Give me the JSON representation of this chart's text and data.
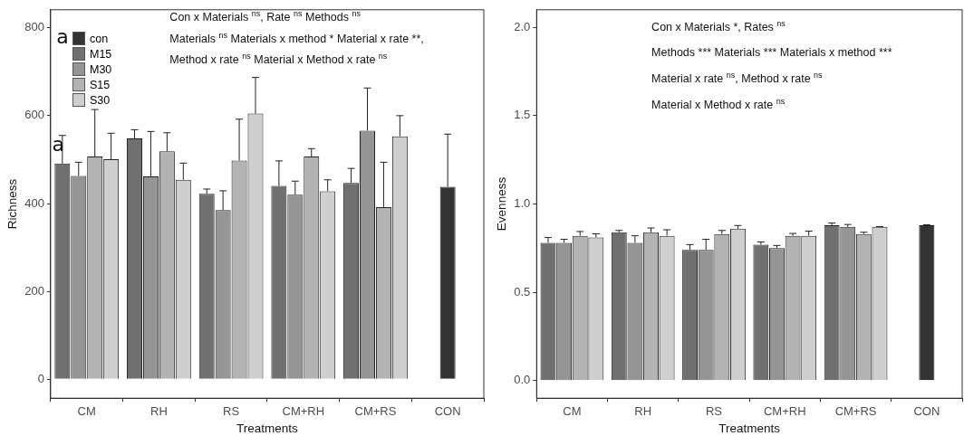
{
  "chart_data": [
    {
      "type": "bar",
      "xlabel": "Treatments",
      "ylabel": "Richness",
      "categories": [
        "CM",
        "RH",
        "RS",
        "CM+RH",
        "CM+RS",
        "CON"
      ],
      "ylim": [
        -43,
        841
      ],
      "yticks": [
        0,
        200,
        400,
        600,
        800
      ],
      "grid": false,
      "legend": "top left",
      "series": [
        {
          "name": "con",
          "color": "#333333",
          "values": [
            null,
            null,
            null,
            null,
            null,
            438
          ],
          "errors": [
            null,
            null,
            null,
            null,
            null,
            120
          ]
        },
        {
          "name": "M15",
          "color": "#707070",
          "values": [
            491,
            548,
            422,
            440,
            447,
            null
          ],
          "errors": [
            64,
            20,
            11,
            57,
            33,
            null
          ]
        },
        {
          "name": "M30",
          "color": "#959595",
          "values": [
            463,
            462,
            385,
            420,
            566,
            null
          ],
          "errors": [
            31,
            102,
            44,
            31,
            97,
            null
          ]
        },
        {
          "name": "S15",
          "color": "#b3b3b3",
          "values": [
            507,
            519,
            498,
            507,
            392,
            null
          ],
          "errors": [
            107,
            42,
            94,
            18,
            102,
            null
          ]
        },
        {
          "name": "S30",
          "color": "#cfcfcf",
          "values": [
            501,
            454,
            605,
            428,
            553,
            null
          ],
          "errors": [
            59,
            38,
            82,
            26,
            47,
            null
          ]
        }
      ],
      "annotations": [
        "Con x Materials $^{ns}$, Rate $^{ns}$ Methods $^{ns}$",
        "Materials $^{ns}$ Materials x method * Material x rate **,",
        "Method x rate $^{ns}$ Material x Method x rate $^{ns}$",
        "a",
        "a"
      ]
    },
    {
      "type": "bar",
      "xlabel": "Treatments",
      "ylabel": "Evenness",
      "categories": [
        "CM",
        "RH",
        "RS",
        "CM+RH",
        "CM+RS",
        "CON"
      ],
      "ylim": [
        -0.1,
        2.1
      ],
      "yticks": [
        {
          "value": 0,
          "label": "0.0"
        },
        {
          "value": 0.5,
          "label": "0.5"
        },
        {
          "value": 1,
          "label": "1.0"
        },
        {
          "value": 1.5,
          "label": "1.5"
        },
        {
          "value": 2,
          "label": "2.0"
        }
      ],
      "grid": false,
      "legend": false,
      "series": [
        {
          "color": "#333333",
          "values": [
            null,
            null,
            null,
            null,
            null,
            0.88
          ],
          "errors": [
            null,
            null,
            null,
            null,
            null,
            0.002
          ]
        },
        {
          "color": "#707070",
          "values": [
            0.78,
            0.84,
            0.74,
            0.77,
            0.88,
            null
          ],
          "errors": [
            0.03,
            0.01,
            0.03,
            0.015,
            0.012,
            null
          ]
        },
        {
          "color": "#959595",
          "values": [
            0.78,
            0.78,
            0.74,
            0.75,
            0.87,
            null
          ],
          "errors": [
            0.02,
            0.04,
            0.06,
            0.015,
            0.014,
            null
          ]
        },
        {
          "color": "#b3b3b3",
          "values": [
            0.82,
            0.84,
            0.83,
            0.82,
            0.83,
            null
          ],
          "errors": [
            0.024,
            0.024,
            0.02,
            0.013,
            0.01,
            null
          ]
        },
        {
          "color": "#cfcfcf",
          "values": [
            0.81,
            0.82,
            0.86,
            0.82,
            0.87,
            null
          ],
          "errors": [
            0.021,
            0.034,
            0.018,
            0.026,
            0.002,
            null
          ]
        }
      ],
      "annotations": [
        "Con x Materials *, Rates $^{ns}$",
        "Methods *** Materials *** Materials x method ***",
        "Material x rate $^{ns}$, Method x rate $^{ns}$",
        "Material x Method x rate $^{ns}$"
      ]
    }
  ]
}
